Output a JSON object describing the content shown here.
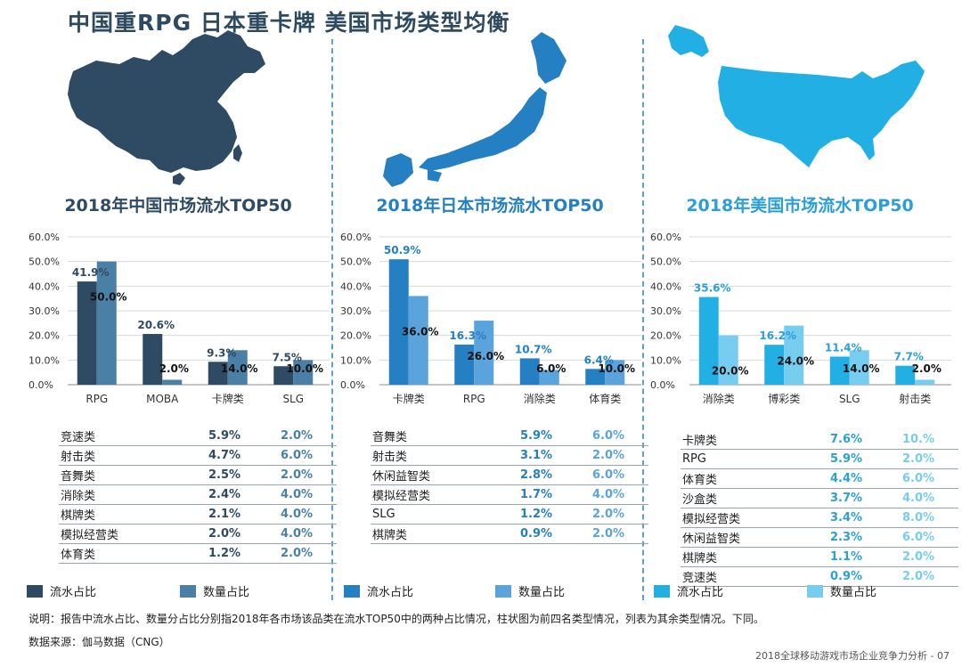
{
  "title": "中国重RPG 日本重卡牌  美国市场类型均衡",
  "note": "说明：报告中流水占比、数量分占比分别指2018年各市场该品类在流水TOP50中的两种占比情况，柱状图为前四名类型情况，列表为其余类型情况。下同。",
  "source": "数据来源：伽马数据（CNG）",
  "footer": "2018全球移动游戏市场企业竞争力分析 - 07",
  "panels": [
    {
      "title": "2018年中国市场流水TOP50",
      "map_icon": "china-map-icon",
      "table": [
        {
          "name": "竞速类",
          "a": "5.9%",
          "b": "2.0%"
        },
        {
          "name": "射击类",
          "a": "4.7%",
          "b": "6.0%"
        },
        {
          "name": "音舞类",
          "a": "2.5%",
          "b": "2.0%"
        },
        {
          "name": "消除类",
          "a": "2.4%",
          "b": "4.0%"
        },
        {
          "name": "棋牌类",
          "a": "2.1%",
          "b": "4.0%"
        },
        {
          "name": "模拟经营类",
          "a": "2.0%",
          "b": "4.0%"
        },
        {
          "name": "体育类",
          "a": "1.2%",
          "b": "2.0%"
        }
      ],
      "legend": [
        "流水占比",
        "数量占比"
      ]
    },
    {
      "title": "2018年日本市场流水TOP50",
      "map_icon": "japan-map-icon",
      "table": [
        {
          "name": "音舞类",
          "a": "5.9%",
          "b": "6.0%"
        },
        {
          "name": "射击类",
          "a": "3.1%",
          "b": "2.0%"
        },
        {
          "name": "休闲益智类",
          "a": "2.8%",
          "b": "6.0%"
        },
        {
          "name": "模拟经营类",
          "a": "1.7%",
          "b": "4.0%"
        },
        {
          "name": "SLG",
          "a": "1.2%",
          "b": "2.0%"
        },
        {
          "name": "棋牌类",
          "a": "0.9%",
          "b": "2.0%"
        }
      ],
      "legend": [
        "流水占比",
        "数量占比"
      ]
    },
    {
      "title": "2018年美国市场流水TOP50",
      "map_icon": "usa-map-icon",
      "table": [
        {
          "name": "卡牌类",
          "a": "7.6%",
          "b": "10.%"
        },
        {
          "name": "RPG",
          "a": "5.9%",
          "b": "2.0%"
        },
        {
          "name": "体育类",
          "a": "4.4%",
          "b": "6.0%"
        },
        {
          "name": "沙盒类",
          "a": "3.7%",
          "b": "4.0%"
        },
        {
          "name": "模拟经营类",
          "a": "3.4%",
          "b": "8.0%"
        },
        {
          "name": "休闲益智类",
          "a": "2.3%",
          "b": "6.0%"
        },
        {
          "name": "棋牌类",
          "a": "1.1%",
          "b": "2.0%"
        },
        {
          "name": "竞速类",
          "a": "0.9%",
          "b": "2.0%"
        }
      ],
      "legend": [
        "流水占比",
        "数量占比"
      ]
    }
  ],
  "chart_data": [
    {
      "type": "bar",
      "title": "2018年中国市场流水TOP50",
      "categories": [
        "RPG",
        "MOBA",
        "卡牌类",
        "SLG"
      ],
      "series": [
        {
          "name": "流水占比",
          "values": [
            41.9,
            20.6,
            9.3,
            7.5
          ],
          "labels": [
            "41.9%",
            "20.6%",
            "9.3%",
            "7.5%"
          ],
          "color": "#2f4b63"
        },
        {
          "name": "数量占比",
          "values": [
            50.0,
            2.0,
            14.0,
            10.0
          ],
          "labels": [
            "50.0%",
            "2.0%",
            "14.0%",
            "10.0%"
          ],
          "color": "#4a7fa6"
        }
      ],
      "yticks": [
        "0.0%",
        "10.0%",
        "20.0%",
        "30.0%",
        "40.0%",
        "50.0%",
        "60.0%"
      ],
      "ylim": [
        0,
        60
      ],
      "grid": true,
      "label_color": "#2f4b63",
      "title_color": "#2f4b63"
    },
    {
      "type": "bar",
      "title": "2018年日本市场流水TOP50",
      "categories": [
        "卡牌类",
        "RPG",
        "消除类",
        "体育类"
      ],
      "series": [
        {
          "name": "流水占比",
          "values": [
            50.9,
            16.3,
            10.7,
            6.4
          ],
          "labels": [
            "50.9%",
            "16.3%",
            "10.7%",
            "6.4%"
          ],
          "color": "#2580c3"
        },
        {
          "name": "数量占比",
          "values": [
            36.0,
            26.0,
            6.0,
            10.0
          ],
          "labels": [
            "36.0%",
            "26.0%",
            "6.0%",
            "10.0%"
          ],
          "color": "#5aa3dc"
        }
      ],
      "yticks": [
        "0.0%",
        "10.0%",
        "20.0%",
        "30.0%",
        "40.0%",
        "50.0%",
        "60.0%"
      ],
      "ylim": [
        0,
        60
      ],
      "grid": true,
      "label_color": "#2580c3",
      "title_color": "#2580c3"
    },
    {
      "type": "bar",
      "title": "2018年美国市场流水TOP50",
      "categories": [
        "消除类",
        "博彩类",
        "SLG",
        "射击类"
      ],
      "series": [
        {
          "name": "流水占比",
          "values": [
            35.6,
            16.2,
            11.4,
            7.7
          ],
          "labels": [
            "35.6%",
            "16.2%",
            "11.4%",
            "7.7%"
          ],
          "color": "#22b0e4"
        },
        {
          "name": "数量占比",
          "values": [
            20.0,
            24.0,
            14.0,
            2.0
          ],
          "labels": [
            "20.0%",
            "24.0%",
            "14.0%",
            "2.0%"
          ],
          "color": "#77cdf0"
        }
      ],
      "yticks": [
        "0.0%",
        "10.0%",
        "20.0%",
        "30.0%",
        "40.0%",
        "50.0%",
        "60.0%"
      ],
      "ylim": [
        0,
        60
      ],
      "grid": true,
      "label_color": "#2a9fd8",
      "title_color": "#2a9fd8"
    }
  ]
}
